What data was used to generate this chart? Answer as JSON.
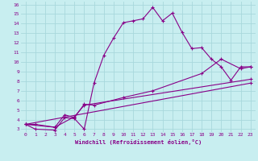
{
  "xlabel": "Windchill (Refroidissement éolien,°C)",
  "bg_color": "#c8eef0",
  "grid_color": "#a8d8dc",
  "line_color": "#880088",
  "xlim": [
    -0.5,
    23.5
  ],
  "ylim": [
    2.7,
    16.3
  ],
  "xticks": [
    0,
    1,
    2,
    3,
    4,
    5,
    6,
    7,
    8,
    9,
    10,
    11,
    12,
    13,
    14,
    15,
    16,
    17,
    18,
    19,
    20,
    21,
    22,
    23
  ],
  "yticks": [
    3,
    4,
    5,
    6,
    7,
    8,
    9,
    10,
    11,
    12,
    13,
    14,
    15,
    16
  ],
  "line1_x": [
    0,
    1,
    3,
    4,
    5,
    6,
    7,
    8,
    9,
    10,
    11,
    12,
    13,
    14,
    15,
    16,
    17,
    18,
    19,
    20,
    21,
    22,
    23
  ],
  "line1_y": [
    3.5,
    3.0,
    2.9,
    4.2,
    4.1,
    3.0,
    7.8,
    10.7,
    12.5,
    14.1,
    14.3,
    14.5,
    15.7,
    14.3,
    15.1,
    13.1,
    11.4,
    11.5,
    10.3,
    9.5,
    8.1,
    9.5,
    9.5
  ],
  "line2_x": [
    0,
    1,
    3,
    4,
    5,
    6,
    7,
    10,
    13,
    18,
    20,
    22,
    23
  ],
  "line2_y": [
    3.5,
    3.5,
    3.2,
    4.5,
    4.2,
    5.6,
    5.5,
    6.3,
    7.0,
    8.8,
    10.3,
    9.3,
    9.5
  ],
  "line3_x": [
    0,
    3,
    5,
    6,
    23
  ],
  "line3_y": [
    3.5,
    3.2,
    4.3,
    5.5,
    8.2
  ],
  "line4_x": [
    0,
    23
  ],
  "line4_y": [
    3.5,
    7.8
  ]
}
